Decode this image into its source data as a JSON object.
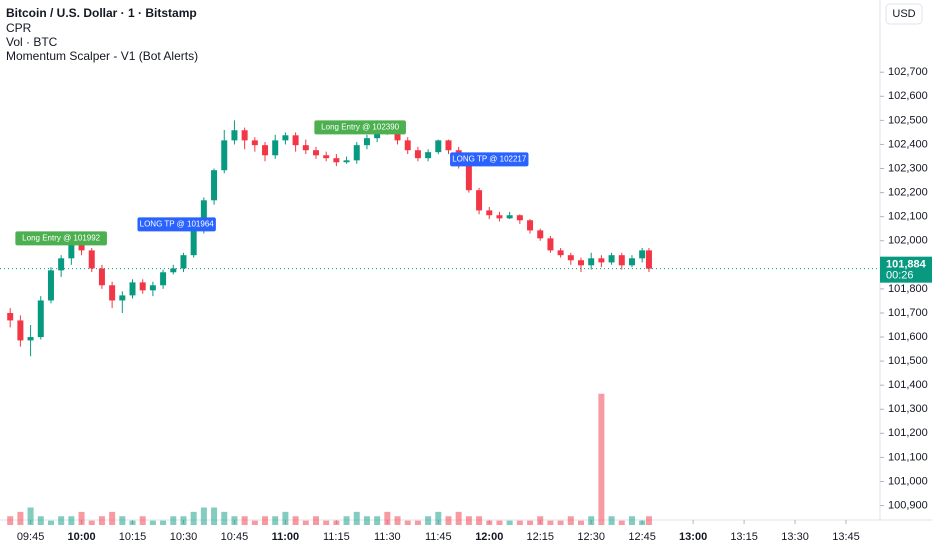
{
  "chart_data": {
    "type": "candlestick",
    "title": "Bitcoin / U.S. Dollar · 1 · Bitstamp",
    "indicators": [
      "CPR",
      "Vol · BTC",
      "Momentum Scalper - V1 (Bot Alerts)"
    ],
    "currency": "USD",
    "up_color": "#089981",
    "down_color": "#f23645",
    "x": [
      "09:39",
      "09:42",
      "09:45",
      "09:48",
      "09:51",
      "09:54",
      "09:57",
      "10:00",
      "10:03",
      "10:06",
      "10:09",
      "10:12",
      "10:15",
      "10:18",
      "10:21",
      "10:24",
      "10:27",
      "10:30",
      "10:33",
      "10:36",
      "10:39",
      "10:42",
      "10:45",
      "10:48",
      "10:51",
      "10:54",
      "10:57",
      "11:00",
      "11:03",
      "11:06",
      "11:09",
      "11:12",
      "11:15",
      "11:18",
      "11:21",
      "11:24",
      "11:27",
      "11:30",
      "11:33",
      "11:36",
      "11:39",
      "11:42",
      "11:45",
      "11:48",
      "11:51",
      "11:54",
      "11:57",
      "12:00",
      "12:03",
      "12:06",
      "12:09",
      "12:12",
      "12:15",
      "12:18",
      "12:21",
      "12:24",
      "12:27",
      "12:30",
      "12:33",
      "12:36",
      "12:39",
      "12:42",
      "12:45",
      "12:47"
    ],
    "open": [
      101700,
      101669,
      101586,
      101600,
      101752,
      101877,
      101927,
      101998,
      101960,
      101885,
      101815,
      101752,
      101773,
      101827,
      101794,
      101815,
      101869,
      101885,
      101940,
      102043,
      102168,
      102293,
      102417,
      102459,
      102417,
      102397,
      102355,
      102417,
      102438,
      102397,
      102376,
      102355,
      102343,
      102326,
      102334,
      102397,
      102426,
      102480,
      102459,
      102417,
      102376,
      102343,
      102368,
      102417,
      102376,
      102313,
      102210,
      102126,
      102106,
      102093,
      102106,
      102085,
      102043,
      102010,
      101960,
      101940,
      101919,
      101898,
      101927,
      101910,
      101940,
      101898,
      101927,
      101960
    ],
    "high": [
      101720,
      101690,
      101650,
      101770,
      101890,
      101940,
      102010,
      102010,
      101970,
      101900,
      101830,
      101790,
      101840,
      101840,
      101830,
      101880,
      101900,
      101950,
      102060,
      102180,
      102300,
      102460,
      102500,
      102470,
      102430,
      102410,
      102440,
      102450,
      102450,
      102420,
      102390,
      102370,
      102360,
      102350,
      102410,
      102440,
      102500,
      102490,
      102470,
      102430,
      102390,
      102380,
      102420,
      102420,
      102390,
      102320,
      102220,
      102140,
      102120,
      102120,
      102110,
      102090,
      102050,
      102020,
      101970,
      101950,
      101930,
      101950,
      101940,
      101950,
      101950,
      101940,
      101970,
      101970
    ],
    "low": [
      101640,
      101560,
      101520,
      101590,
      101740,
      101850,
      101900,
      101940,
      101870,
      101800,
      101720,
      101700,
      101760,
      101780,
      101770,
      101800,
      101860,
      101870,
      101930,
      102030,
      102150,
      102280,
      102400,
      102380,
      102370,
      102330,
      102340,
      102400,
      102370,
      102360,
      102340,
      102330,
      102310,
      102320,
      102320,
      102380,
      102410,
      102440,
      102400,
      102360,
      102330,
      102330,
      102360,
      102360,
      102300,
      102200,
      102110,
      102090,
      102080,
      102090,
      102070,
      102030,
      102000,
      101950,
      101930,
      101900,
      101870,
      101880,
      101890,
      101900,
      101880,
      101890,
      101910,
      101870
    ],
    "close": [
      101669,
      101586,
      101600,
      101752,
      101877,
      101927,
      101998,
      101960,
      101885,
      101815,
      101752,
      101773,
      101827,
      101794,
      101815,
      101869,
      101885,
      101940,
      102043,
      102168,
      102293,
      102417,
      102459,
      102417,
      102397,
      102355,
      102417,
      102438,
      102397,
      102376,
      102355,
      102343,
      102326,
      102334,
      102397,
      102426,
      102480,
      102459,
      102417,
      102376,
      102343,
      102368,
      102417,
      102376,
      102313,
      102210,
      102126,
      102106,
      102093,
      102106,
      102085,
      102043,
      102010,
      101960,
      101940,
      101919,
      101898,
      101927,
      101910,
      101940,
      101898,
      101927,
      101960,
      101884
    ],
    "volume": [
      2,
      3,
      4,
      2,
      1,
      2,
      2,
      3,
      1,
      2,
      3,
      2,
      1,
      2,
      1,
      1,
      2,
      2,
      3,
      4,
      4,
      3,
      2,
      2,
      1,
      2,
      2,
      3,
      2,
      1,
      2,
      1,
      1,
      2,
      3,
      2,
      2,
      3,
      2,
      1,
      1,
      2,
      3,
      2,
      3,
      2,
      2,
      1,
      1,
      1,
      1,
      1,
      2,
      1,
      1,
      2,
      1,
      2,
      30,
      2,
      1,
      2,
      1,
      2
    ],
    "volume_ylim": [
      0,
      40
    ],
    "xlim": [
      "09:36",
      "13:55"
    ],
    "xticks": [
      "09:45",
      "10:00",
      "10:15",
      "10:30",
      "10:45",
      "11:00",
      "11:15",
      "11:30",
      "11:45",
      "12:00",
      "12:15",
      "12:30",
      "12:45",
      "13:00",
      "13:15",
      "13:30",
      "13:45"
    ],
    "ylim": [
      100840,
      103000
    ],
    "yticks": [
      {
        "value": 100900,
        "label": "100,900"
      },
      {
        "value": 101000,
        "label": "101,000"
      },
      {
        "value": 101100,
        "label": "101,100"
      },
      {
        "value": 101200,
        "label": "101,200"
      },
      {
        "value": 101300,
        "label": "101,300"
      },
      {
        "value": 101400,
        "label": "101,400"
      },
      {
        "value": 101500,
        "label": "101,500"
      },
      {
        "value": 101600,
        "label": "101,600"
      },
      {
        "value": 101700,
        "label": "101,700"
      },
      {
        "value": 101800,
        "label": "101,800"
      },
      {
        "value": 101900,
        "label": "101,900"
      },
      {
        "value": 102000,
        "label": "102,000"
      },
      {
        "value": 102100,
        "label": "102,100"
      },
      {
        "value": 102200,
        "label": "102,200"
      },
      {
        "value": 102300,
        "label": "102,300"
      },
      {
        "value": 102400,
        "label": "102,400"
      },
      {
        "value": 102500,
        "label": "102,500"
      },
      {
        "value": 102600,
        "label": "102,600"
      },
      {
        "value": 102700,
        "label": "102,700"
      }
    ],
    "last_price": {
      "value": 101884,
      "label": "101,884"
    },
    "countdown": "00:26",
    "annotations": [
      {
        "text": "Long Entry @ 101992",
        "x": "09:54",
        "price": 102010,
        "color": "#4caf50"
      },
      {
        "text": "LONG TP @ 101964",
        "x": "10:28",
        "price": 102068,
        "color": "#2962ff"
      },
      {
        "text": "Long Entry @ 102390",
        "x": "11:22",
        "price": 102471,
        "color": "#4caf50"
      },
      {
        "text": "LONG TP @ 102217",
        "x": "12:00",
        "price": 102338,
        "color": "#2962ff"
      }
    ]
  }
}
